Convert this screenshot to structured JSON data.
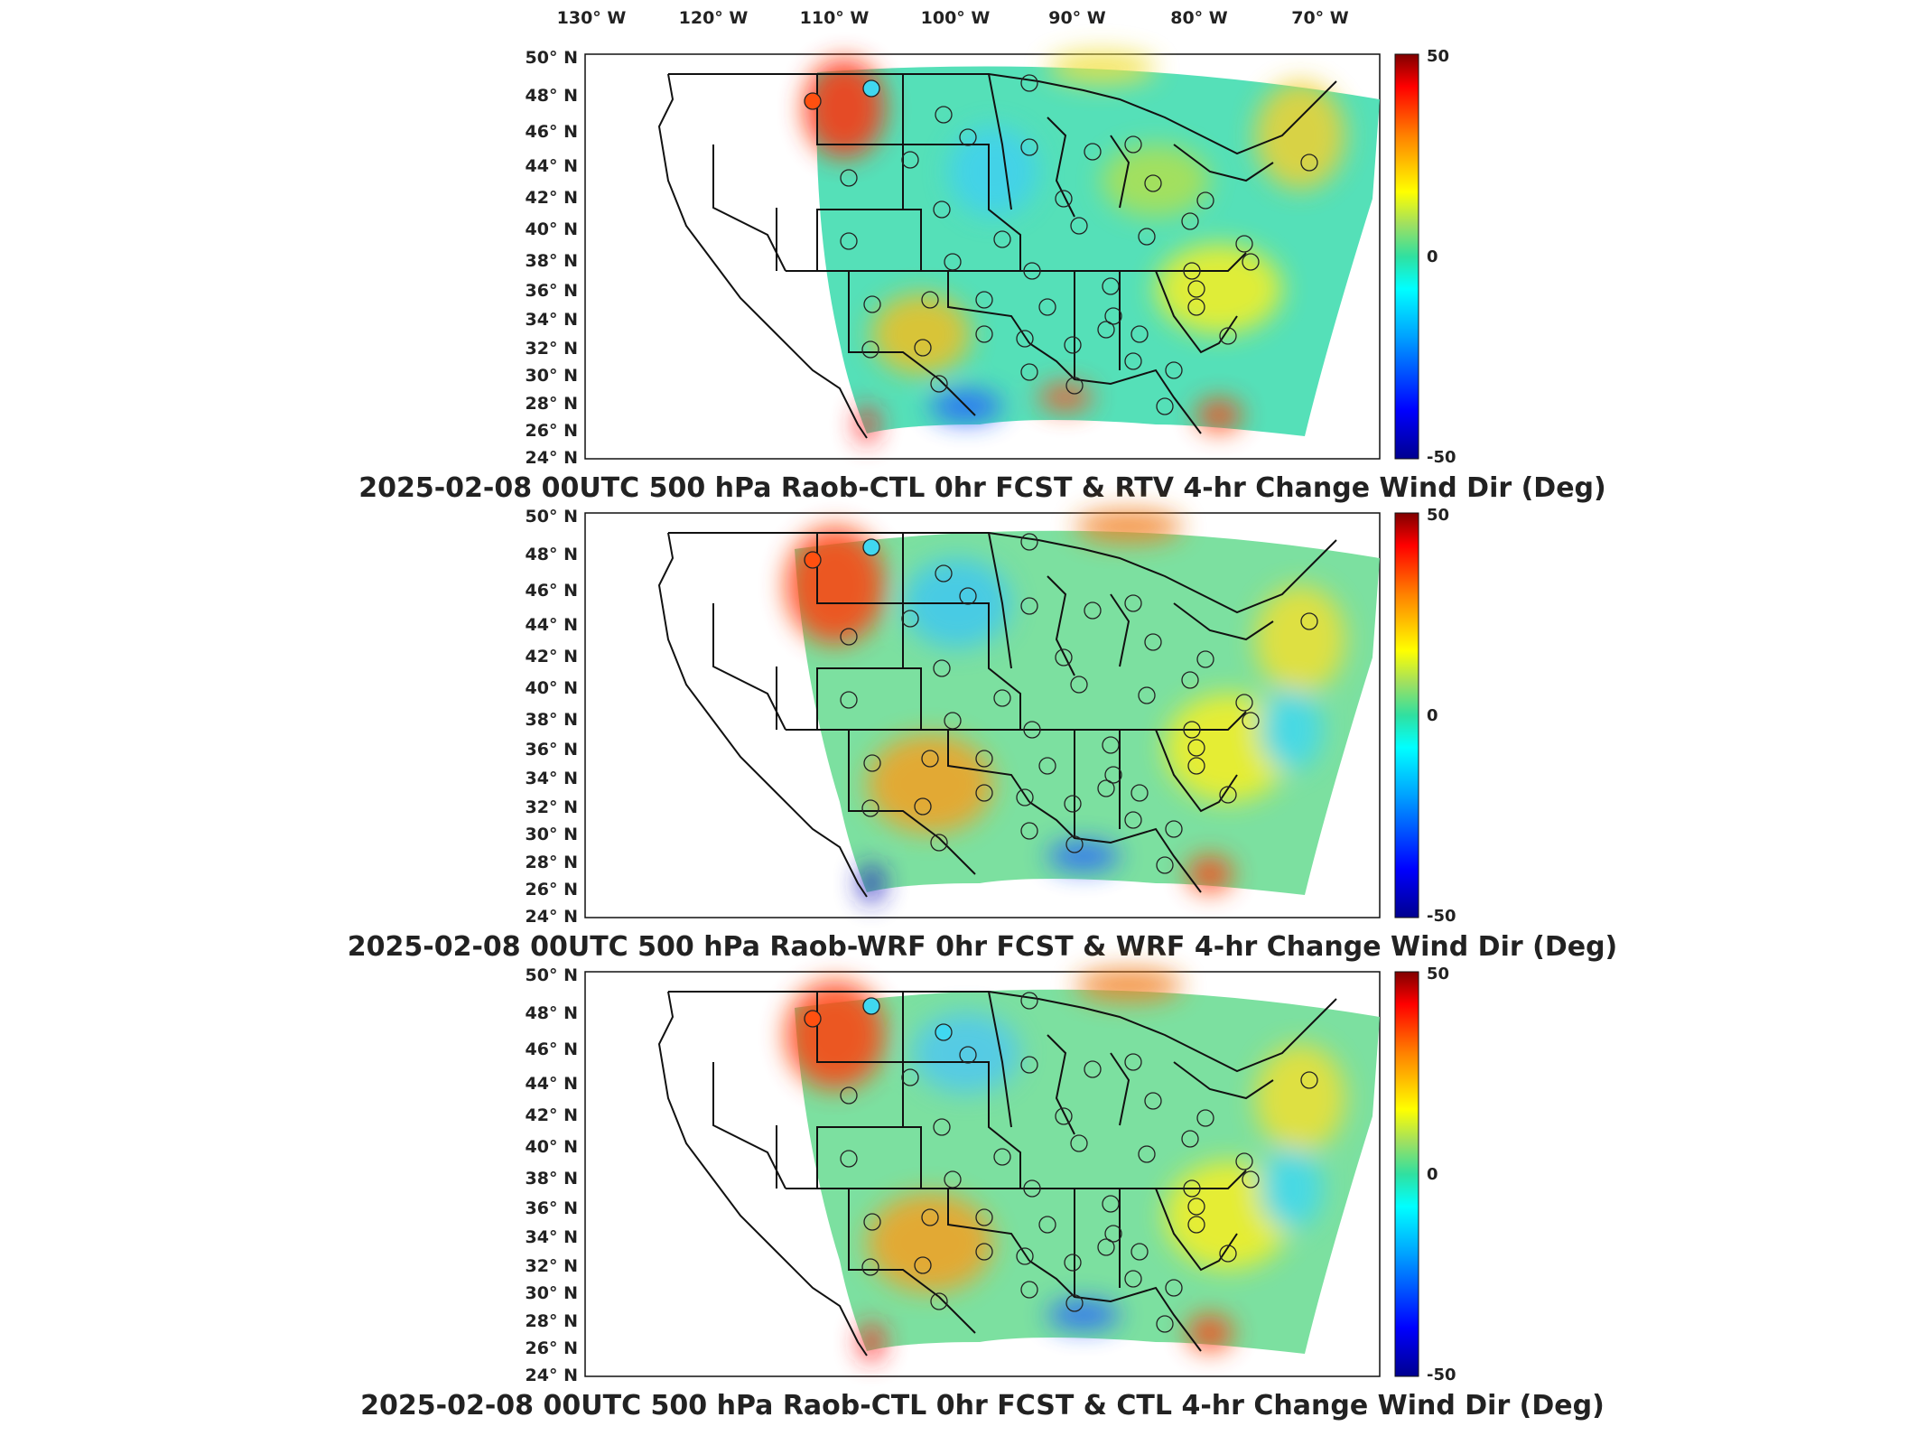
{
  "lon_labels": [
    "130° W",
    "120° W",
    "110° W",
    "100° W",
    "90° W",
    "80° W",
    "70° W"
  ],
  "lat_labels": [
    "50° N",
    "48° N",
    "46° N",
    "44° N",
    "42° N",
    "40° N",
    "38° N",
    "36° N",
    "34° N",
    "32° N",
    "30° N",
    "28° N",
    "26° N",
    "24° N"
  ],
  "panels": [
    {
      "title": "2025-02-08 00UTC 500 hPa Raob-CTL 0hr FCST & RTV 4-hr Change Wind Dir (Deg)",
      "colorbar": {
        "max": "50",
        "mid": "0",
        "min": "-50"
      }
    },
    {
      "title": "2025-02-08 00UTC 500 hPa Raob-WRF 0hr FCST & WRF 4-hr Change Wind Dir (Deg)",
      "colorbar": {
        "max": "50",
        "mid": "0",
        "min": "-50"
      }
    },
    {
      "title": "2025-02-08 00UTC 500 hPa Raob-CTL 0hr FCST & CTL 4-hr Change Wind Dir (Deg)",
      "colorbar": {
        "max": "50",
        "mid": "0",
        "min": "-50"
      }
    }
  ],
  "colors": {
    "colormap": [
      "#00008f",
      "#0000ff",
      "#00a0ff",
      "#00ffff",
      "#30e0a0",
      "#a0e060",
      "#ffff00",
      "#ff8000",
      "#ff0000",
      "#800000"
    ],
    "field_base": "#55e0b8",
    "outline": "#111111"
  }
}
